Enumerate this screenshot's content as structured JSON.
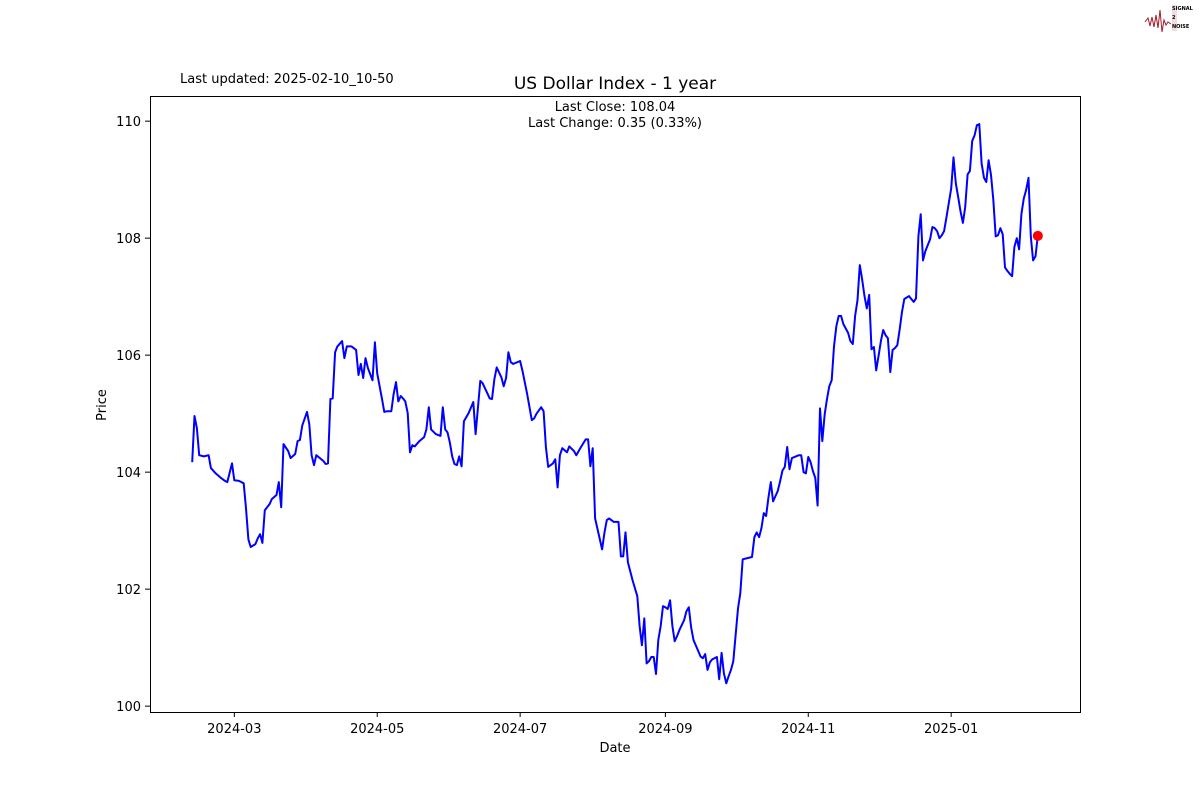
{
  "header": {
    "last_updated": "Last updated: 2025-02-10_10-50",
    "logo_text": "SIGNAL 2 NOISE"
  },
  "chart_data": {
    "type": "line",
    "title": "US Dollar Index - 1 year",
    "annotation_close": "Last Close: 108.04",
    "annotation_change": "Last Change: 0.35 (0.33%)",
    "xlabel": "Date",
    "ylabel": "Price",
    "xlim": [
      "2024-01-25",
      "2025-02-25"
    ],
    "ylim": [
      99.9,
      110.43
    ],
    "xticks": [
      "2024-03",
      "2024-05",
      "2024-07",
      "2024-09",
      "2024-11",
      "2025-01"
    ],
    "yticks": [
      100,
      102,
      104,
      106,
      108,
      110
    ],
    "grid": false,
    "line_color": "#0000ff",
    "marker_color": "#ff0000",
    "last_point": {
      "x": "2025-02-07",
      "y": 108.04
    },
    "series": [
      {
        "x": [
          "2024-02-12",
          "2024-02-13",
          "2024-02-14",
          "2024-02-15",
          "2024-02-17",
          "2024-02-19",
          "2024-02-20",
          "2024-02-22",
          "2024-02-24",
          "2024-02-26",
          "2024-02-27",
          "2024-02-29",
          "2024-03-01",
          "2024-03-03",
          "2024-03-05",
          "2024-03-06",
          "2024-03-07",
          "2024-03-08",
          "2024-03-10",
          "2024-03-11",
          "2024-03-12",
          "2024-03-13",
          "2024-03-14",
          "2024-03-16",
          "2024-03-17",
          "2024-03-19",
          "2024-03-20",
          "2024-03-21",
          "2024-03-22",
          "2024-03-24",
          "2024-03-25",
          "2024-03-27",
          "2024-03-28",
          "2024-03-29",
          "2024-03-30",
          "2024-04-01",
          "2024-04-02",
          "2024-04-03",
          "2024-04-04",
          "2024-04-05",
          "2024-04-08",
          "2024-04-09",
          "2024-04-10",
          "2024-04-11",
          "2024-04-12",
          "2024-04-13",
          "2024-04-14",
          "2024-04-16",
          "2024-04-17",
          "2024-04-18",
          "2024-04-20",
          "2024-04-22",
          "2024-04-23",
          "2024-04-24",
          "2024-04-25",
          "2024-04-26",
          "2024-04-27",
          "2024-04-29",
          "2024-04-30",
          "2024-05-01",
          "2024-05-03",
          "2024-05-04",
          "2024-05-05",
          "2024-05-07",
          "2024-05-08",
          "2024-05-09",
          "2024-05-10",
          "2024-05-11",
          "2024-05-12",
          "2024-05-13",
          "2024-05-14",
          "2024-05-15",
          "2024-05-16",
          "2024-05-17",
          "2024-05-19",
          "2024-05-21",
          "2024-05-22",
          "2024-05-23",
          "2024-05-24",
          "2024-05-26",
          "2024-05-28",
          "2024-05-29",
          "2024-05-30",
          "2024-05-31",
          "2024-06-01",
          "2024-06-02",
          "2024-06-03",
          "2024-06-04",
          "2024-06-05",
          "2024-06-06",
          "2024-06-07",
          "2024-06-09",
          "2024-06-11",
          "2024-06-12",
          "2024-06-14",
          "2024-06-15",
          "2024-06-17",
          "2024-06-18",
          "2024-06-19",
          "2024-06-20",
          "2024-06-21",
          "2024-06-23",
          "2024-06-24",
          "2024-06-25",
          "2024-06-26",
          "2024-06-27",
          "2024-06-28",
          "2024-07-01",
          "2024-07-02",
          "2024-07-04",
          "2024-07-06",
          "2024-07-07",
          "2024-07-08",
          "2024-07-10",
          "2024-07-11",
          "2024-07-12",
          "2024-07-13",
          "2024-07-15",
          "2024-07-16",
          "2024-07-17",
          "2024-07-18",
          "2024-07-19",
          "2024-07-21",
          "2024-07-22",
          "2024-07-24",
          "2024-07-25",
          "2024-07-27",
          "2024-07-29",
          "2024-07-30",
          "2024-07-31",
          "2024-08-01",
          "2024-08-02",
          "2024-08-05",
          "2024-08-06",
          "2024-08-07",
          "2024-08-08",
          "2024-08-10",
          "2024-08-12",
          "2024-08-13",
          "2024-08-14",
          "2024-08-15",
          "2024-08-16",
          "2024-08-18",
          "2024-08-20",
          "2024-08-21",
          "2024-08-22",
          "2024-08-23",
          "2024-08-24",
          "2024-08-25",
          "2024-08-26",
          "2024-08-27",
          "2024-08-28",
          "2024-08-29",
          "2024-08-30",
          "2024-08-31",
          "2024-09-01",
          "2024-09-02",
          "2024-09-03",
          "2024-09-04",
          "2024-09-05",
          "2024-09-06",
          "2024-09-07",
          "2024-09-09",
          "2024-09-10",
          "2024-09-11",
          "2024-09-12",
          "2024-09-13",
          "2024-09-16",
          "2024-09-17",
          "2024-09-18",
          "2024-09-19",
          "2024-09-20",
          "2024-09-21",
          "2024-09-23",
          "2024-09-24",
          "2024-09-25",
          "2024-09-26",
          "2024-09-27",
          "2024-09-28",
          "2024-09-29",
          "2024-09-30",
          "2024-10-01",
          "2024-10-02",
          "2024-10-03",
          "2024-10-04",
          "2024-10-06",
          "2024-10-08",
          "2024-10-09",
          "2024-10-10",
          "2024-10-11",
          "2024-10-12",
          "2024-10-13",
          "2024-10-14",
          "2024-10-15",
          "2024-10-16",
          "2024-10-17",
          "2024-10-19",
          "2024-10-20",
          "2024-10-21",
          "2024-10-22",
          "2024-10-23",
          "2024-10-24",
          "2024-10-25",
          "2024-10-28",
          "2024-10-29",
          "2024-10-30",
          "2024-10-31",
          "2024-11-01",
          "2024-11-02",
          "2024-11-03",
          "2024-11-04",
          "2024-11-05",
          "2024-11-06",
          "2024-11-07",
          "2024-11-08",
          "2024-11-09",
          "2024-11-10",
          "2024-11-11",
          "2024-11-12",
          "2024-11-13",
          "2024-11-14",
          "2024-11-15",
          "2024-11-16",
          "2024-11-18",
          "2024-11-19",
          "2024-11-20",
          "2024-11-21",
          "2024-11-22",
          "2024-11-23",
          "2024-11-24",
          "2024-11-25",
          "2024-11-26",
          "2024-11-27",
          "2024-11-28",
          "2024-11-29",
          "2024-11-30",
          "2024-12-01",
          "2024-12-02",
          "2024-12-03",
          "2024-12-04",
          "2024-12-05",
          "2024-12-06",
          "2024-12-07",
          "2024-12-08",
          "2024-12-09",
          "2024-12-10",
          "2024-12-11",
          "2024-12-12",
          "2024-12-14",
          "2024-12-15",
          "2024-12-16",
          "2024-12-17",
          "2024-12-18",
          "2024-12-19",
          "2024-12-20",
          "2024-12-21",
          "2024-12-23",
          "2024-12-24",
          "2024-12-25",
          "2024-12-26",
          "2024-12-27",
          "2024-12-28",
          "2024-12-29",
          "2024-12-30",
          "2025-01-01",
          "2025-01-02",
          "2025-01-03",
          "2025-01-04",
          "2025-01-05",
          "2025-01-06",
          "2025-01-07",
          "2025-01-08",
          "2025-01-09",
          "2025-01-10",
          "2025-01-11",
          "2025-01-12",
          "2025-01-13",
          "2025-01-14",
          "2025-01-15",
          "2025-01-16",
          "2025-01-17",
          "2025-01-18",
          "2025-01-19",
          "2025-01-20",
          "2025-01-21",
          "2025-01-22",
          "2025-01-23",
          "2025-01-24",
          "2025-01-25",
          "2025-01-26",
          "2025-01-27",
          "2025-01-28",
          "2025-01-29",
          "2025-01-30",
          "2025-01-31",
          "2025-02-01",
          "2025-02-02",
          "2025-02-03",
          "2025-02-04",
          "2025-02-05",
          "2025-02-06",
          "2025-02-07"
        ],
        "y": [
          104.17,
          104.96,
          104.75,
          104.29,
          104.27,
          104.29,
          104.07,
          103.98,
          103.91,
          103.85,
          103.83,
          104.15,
          103.86,
          103.85,
          103.81,
          103.38,
          102.85,
          102.72,
          102.77,
          102.87,
          102.94,
          102.79,
          103.35,
          103.45,
          103.54,
          103.61,
          103.83,
          103.4,
          104.48,
          104.36,
          104.24,
          104.31,
          104.53,
          104.55,
          104.8,
          105.03,
          104.82,
          104.29,
          104.12,
          104.29,
          104.19,
          104.14,
          104.15,
          105.25,
          105.26,
          106.05,
          106.15,
          106.24,
          105.95,
          106.15,
          106.15,
          106.09,
          105.66,
          105.85,
          105.61,
          105.95,
          105.78,
          105.57,
          106.22,
          105.69,
          105.26,
          105.03,
          105.04,
          105.04,
          105.33,
          105.54,
          105.21,
          105.3,
          105.26,
          105.21,
          105.01,
          104.34,
          104.46,
          104.44,
          104.53,
          104.6,
          104.73,
          105.11,
          104.73,
          104.65,
          104.62,
          105.11,
          104.73,
          104.68,
          104.51,
          104.27,
          104.14,
          104.12,
          104.27,
          104.1,
          104.87,
          105.01,
          105.2,
          104.65,
          105.56,
          105.52,
          105.35,
          105.26,
          105.25,
          105.59,
          105.79,
          105.62,
          105.47,
          105.61,
          106.05,
          105.88,
          105.85,
          105.9,
          105.73,
          105.33,
          104.89,
          104.92,
          105.0,
          105.11,
          105.04,
          104.43,
          104.09,
          104.15,
          104.22,
          103.74,
          104.29,
          104.41,
          104.34,
          104.44,
          104.36,
          104.29,
          104.43,
          104.56,
          104.56,
          104.1,
          104.41,
          103.21,
          102.68,
          102.97,
          103.18,
          103.21,
          103.15,
          103.15,
          102.56,
          102.56,
          102.97,
          102.46,
          102.15,
          101.88,
          101.37,
          101.04,
          101.5,
          100.73,
          100.77,
          100.84,
          100.84,
          100.55,
          101.13,
          101.37,
          101.71,
          101.69,
          101.66,
          101.81,
          101.37,
          101.11,
          101.2,
          101.3,
          101.47,
          101.62,
          101.69,
          101.35,
          101.13,
          100.85,
          100.82,
          100.89,
          100.62,
          100.75,
          100.8,
          100.84,
          100.46,
          100.91,
          100.56,
          100.39,
          100.51,
          100.62,
          100.77,
          101.21,
          101.67,
          101.93,
          102.51,
          102.53,
          102.55,
          102.89,
          102.97,
          102.89,
          103.04,
          103.3,
          103.25,
          103.56,
          103.83,
          103.5,
          103.68,
          103.85,
          104.03,
          104.09,
          104.43,
          104.05,
          104.24,
          104.29,
          104.29,
          104.0,
          103.98,
          104.26,
          104.17,
          104.02,
          103.9,
          103.43,
          105.09,
          104.53,
          104.99,
          105.25,
          105.47,
          105.57,
          106.15,
          106.5,
          106.67,
          106.67,
          106.53,
          106.38,
          106.24,
          106.19,
          106.67,
          106.94,
          107.54,
          107.3,
          107.01,
          106.8,
          107.03,
          106.1,
          106.14,
          105.74,
          105.98,
          106.24,
          106.43,
          106.34,
          106.29,
          105.71,
          106.09,
          106.12,
          106.17,
          106.43,
          106.74,
          106.96,
          107.01,
          106.96,
          106.91,
          106.97,
          108.03,
          108.41,
          107.62,
          107.78,
          107.98,
          108.19,
          108.17,
          108.12,
          108.0,
          108.05,
          108.12,
          108.36,
          108.85,
          109.38,
          108.94,
          108.7,
          108.46,
          108.26,
          108.53,
          109.09,
          109.15,
          109.66,
          109.76,
          109.93,
          109.95,
          109.28,
          109.03,
          108.96,
          109.33,
          109.08,
          108.66,
          108.03,
          108.05,
          108.17,
          108.07,
          107.5,
          107.44,
          107.39,
          107.35,
          107.85,
          108.0,
          107.81,
          108.41,
          108.68,
          108.82,
          109.03,
          108.03,
          107.62,
          107.69,
          108.04
        ]
      }
    ]
  }
}
